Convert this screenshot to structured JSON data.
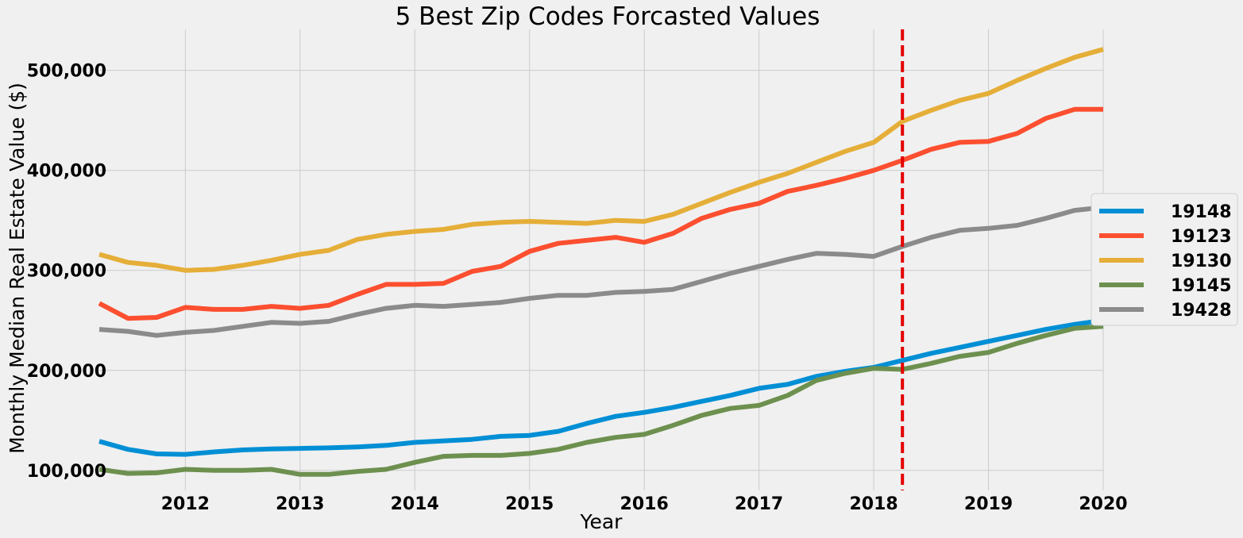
{
  "chart_data": {
    "type": "line",
    "title": "5 Best Zip Codes Forcasted Values",
    "xlabel": "Year",
    "ylabel": "Monthly Median Real Estate Value ($)",
    "xlim": [
      "2011-04",
      "2020-01"
    ],
    "ylim": [
      80000,
      541000
    ],
    "x_ticks": [
      "2012",
      "2013",
      "2014",
      "2015",
      "2016",
      "2017",
      "2018",
      "2019",
      "2020"
    ],
    "y_ticks": [
      100000,
      200000,
      300000,
      400000,
      500000
    ],
    "y_tick_labels": [
      "100,000",
      "200,000",
      "300,000",
      "400,000",
      "500,000"
    ],
    "forecast_start": "2018-04",
    "forecast_line_color": "#e50000",
    "grid": true,
    "legend_position": "center-right outside",
    "series": [
      {
        "name": "19148",
        "color": "#008fd5",
        "points": [
          [
            "2011-04",
            129000
          ],
          [
            "2011-07",
            121000
          ],
          [
            "2011-10",
            116500
          ],
          [
            "2012-01",
            116000
          ],
          [
            "2012-04",
            118500
          ],
          [
            "2012-07",
            120500
          ],
          [
            "2012-10",
            121500
          ],
          [
            "2013-01",
            122000
          ],
          [
            "2013-04",
            122500
          ],
          [
            "2013-07",
            123500
          ],
          [
            "2013-10",
            125000
          ],
          [
            "2014-01",
            128000
          ],
          [
            "2014-04",
            129500
          ],
          [
            "2014-07",
            131000
          ],
          [
            "2014-10",
            134000
          ],
          [
            "2015-01",
            135000
          ],
          [
            "2015-04",
            139000
          ],
          [
            "2015-07",
            147000
          ],
          [
            "2015-10",
            154000
          ],
          [
            "2016-01",
            158000
          ],
          [
            "2016-04",
            163000
          ],
          [
            "2016-07",
            169000
          ],
          [
            "2016-10",
            175000
          ],
          [
            "2017-01",
            182000
          ],
          [
            "2017-04",
            186000
          ],
          [
            "2017-07",
            194000
          ],
          [
            "2017-10",
            199000
          ],
          [
            "2018-01",
            203000
          ],
          [
            "2018-04",
            210000
          ],
          [
            "2018-07",
            217000
          ],
          [
            "2018-10",
            223000
          ],
          [
            "2019-01",
            229000
          ],
          [
            "2019-04",
            235000
          ],
          [
            "2019-07",
            241000
          ],
          [
            "2019-10",
            246000
          ],
          [
            "2020-01",
            250000
          ]
        ]
      },
      {
        "name": "19123",
        "color": "#fc4f30",
        "points": [
          [
            "2011-04",
            267000
          ],
          [
            "2011-07",
            252000
          ],
          [
            "2011-10",
            253000
          ],
          [
            "2012-01",
            263000
          ],
          [
            "2012-04",
            261000
          ],
          [
            "2012-07",
            261000
          ],
          [
            "2012-10",
            264000
          ],
          [
            "2013-01",
            262000
          ],
          [
            "2013-04",
            265000
          ],
          [
            "2013-07",
            276000
          ],
          [
            "2013-10",
            286000
          ],
          [
            "2014-01",
            286000
          ],
          [
            "2014-04",
            287000
          ],
          [
            "2014-07",
            299000
          ],
          [
            "2014-10",
            304000
          ],
          [
            "2015-01",
            319000
          ],
          [
            "2015-04",
            327000
          ],
          [
            "2015-07",
            330000
          ],
          [
            "2015-10",
            333000
          ],
          [
            "2016-01",
            328000
          ],
          [
            "2016-04",
            337000
          ],
          [
            "2016-07",
            352000
          ],
          [
            "2016-10",
            361000
          ],
          [
            "2017-01",
            367000
          ],
          [
            "2017-04",
            379000
          ],
          [
            "2017-07",
            385000
          ],
          [
            "2017-10",
            392000
          ],
          [
            "2018-01",
            400000
          ],
          [
            "2018-04",
            410000
          ],
          [
            "2018-07",
            421000
          ],
          [
            "2018-10",
            428000
          ],
          [
            "2019-01",
            429000
          ],
          [
            "2019-04",
            437000
          ],
          [
            "2019-07",
            452000
          ],
          [
            "2019-10",
            461000
          ],
          [
            "2020-01",
            461000
          ]
        ]
      },
      {
        "name": "19130",
        "color": "#e5ae38",
        "points": [
          [
            "2011-04",
            316000
          ],
          [
            "2011-07",
            308000
          ],
          [
            "2011-10",
            305000
          ],
          [
            "2012-01",
            300000
          ],
          [
            "2012-04",
            301000
          ],
          [
            "2012-07",
            305000
          ],
          [
            "2012-10",
            310000
          ],
          [
            "2013-01",
            316000
          ],
          [
            "2013-04",
            320000
          ],
          [
            "2013-07",
            331000
          ],
          [
            "2013-10",
            336000
          ],
          [
            "2014-01",
            339000
          ],
          [
            "2014-04",
            341000
          ],
          [
            "2014-07",
            346000
          ],
          [
            "2014-10",
            348000
          ],
          [
            "2015-01",
            349000
          ],
          [
            "2015-04",
            348000
          ],
          [
            "2015-07",
            347000
          ],
          [
            "2015-10",
            350000
          ],
          [
            "2016-01",
            349000
          ],
          [
            "2016-04",
            356000
          ],
          [
            "2016-07",
            367000
          ],
          [
            "2016-10",
            378000
          ],
          [
            "2017-01",
            388000
          ],
          [
            "2017-04",
            397000
          ],
          [
            "2017-07",
            408000
          ],
          [
            "2017-10",
            419000
          ],
          [
            "2018-01",
            428000
          ],
          [
            "2018-04",
            449000
          ],
          [
            "2018-07",
            460000
          ],
          [
            "2018-10",
            470000
          ],
          [
            "2019-01",
            477000
          ],
          [
            "2019-04",
            490000
          ],
          [
            "2019-07",
            502000
          ],
          [
            "2019-10",
            513000
          ],
          [
            "2020-01",
            521000
          ]
        ]
      },
      {
        "name": "19145",
        "color": "#6d904f",
        "points": [
          [
            "2011-04",
            101000
          ],
          [
            "2011-07",
            97000
          ],
          [
            "2011-10",
            97500
          ],
          [
            "2012-01",
            101000
          ],
          [
            "2012-04",
            100000
          ],
          [
            "2012-07",
            100000
          ],
          [
            "2012-10",
            101000
          ],
          [
            "2013-01",
            96000
          ],
          [
            "2013-04",
            96000
          ],
          [
            "2013-07",
            99000
          ],
          [
            "2013-10",
            101000
          ],
          [
            "2014-01",
            108000
          ],
          [
            "2014-04",
            114000
          ],
          [
            "2014-07",
            115000
          ],
          [
            "2014-10",
            115000
          ],
          [
            "2015-01",
            117000
          ],
          [
            "2015-04",
            121000
          ],
          [
            "2015-07",
            128000
          ],
          [
            "2015-10",
            133000
          ],
          [
            "2016-01",
            136000
          ],
          [
            "2016-04",
            145000
          ],
          [
            "2016-07",
            155000
          ],
          [
            "2016-10",
            162000
          ],
          [
            "2017-01",
            165000
          ],
          [
            "2017-04",
            175000
          ],
          [
            "2017-07",
            190000
          ],
          [
            "2017-10",
            197000
          ],
          [
            "2018-01",
            202000
          ],
          [
            "2018-04",
            201000
          ],
          [
            "2018-07",
            207000
          ],
          [
            "2018-10",
            214000
          ],
          [
            "2019-01",
            218000
          ],
          [
            "2019-04",
            227000
          ],
          [
            "2019-07",
            235000
          ],
          [
            "2019-10",
            242000
          ],
          [
            "2020-01",
            244000
          ]
        ]
      },
      {
        "name": "19428",
        "color": "#8b8b8b",
        "points": [
          [
            "2011-04",
            241000
          ],
          [
            "2011-07",
            239000
          ],
          [
            "2011-10",
            235000
          ],
          [
            "2012-01",
            238000
          ],
          [
            "2012-04",
            240000
          ],
          [
            "2012-07",
            244000
          ],
          [
            "2012-10",
            248000
          ],
          [
            "2013-01",
            247000
          ],
          [
            "2013-04",
            249000
          ],
          [
            "2013-07",
            256000
          ],
          [
            "2013-10",
            262000
          ],
          [
            "2014-01",
            265000
          ],
          [
            "2014-04",
            264000
          ],
          [
            "2014-07",
            266000
          ],
          [
            "2014-10",
            268000
          ],
          [
            "2015-01",
            272000
          ],
          [
            "2015-04",
            275000
          ],
          [
            "2015-07",
            275000
          ],
          [
            "2015-10",
            278000
          ],
          [
            "2016-01",
            279000
          ],
          [
            "2016-04",
            281000
          ],
          [
            "2016-07",
            289000
          ],
          [
            "2016-10",
            297000
          ],
          [
            "2017-01",
            304000
          ],
          [
            "2017-04",
            311000
          ],
          [
            "2017-07",
            317000
          ],
          [
            "2017-10",
            316000
          ],
          [
            "2018-01",
            314000
          ],
          [
            "2018-04",
            324000
          ],
          [
            "2018-07",
            333000
          ],
          [
            "2018-10",
            340000
          ],
          [
            "2019-01",
            342000
          ],
          [
            "2019-04",
            345000
          ],
          [
            "2019-07",
            352000
          ],
          [
            "2019-10",
            360000
          ],
          [
            "2020-01",
            363000
          ]
        ]
      }
    ]
  }
}
